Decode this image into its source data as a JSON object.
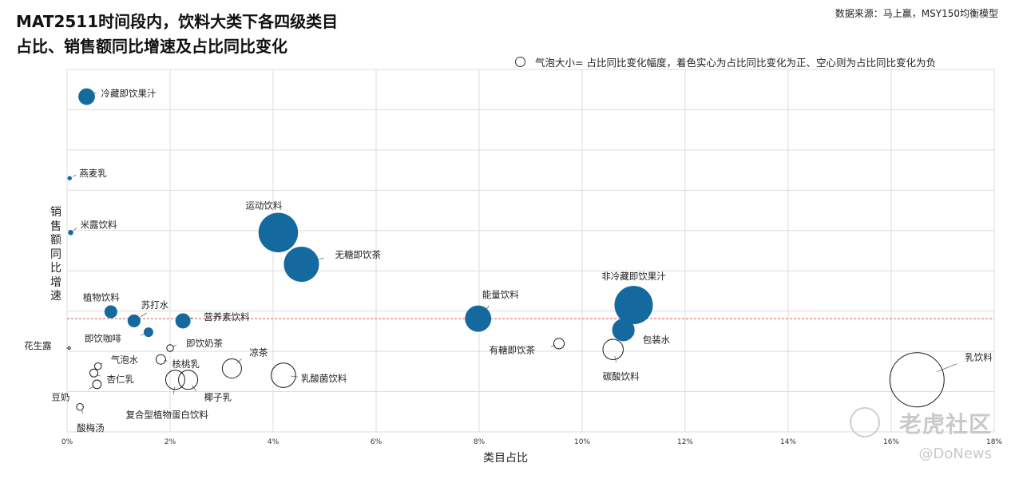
{
  "header": {
    "title_line1": "MAT2511时间段内，饮料大类下各四级类目",
    "title_line2": "占比、销售额同比增速及占比同比变化",
    "source": "数据来源：马上赢，MSY150均衡模型",
    "legend_text": "气泡大小=  占比同比变化幅度，着色实心为占比同比变化为正、空心则为占比同比变化为负"
  },
  "watermark": {
    "brand": "老虎社区",
    "handle": "@DoNews"
  },
  "chart_data": {
    "type": "scatter",
    "xlabel": "类目占比",
    "ylabel": "销售额同比增速",
    "xlim": [
      0,
      18
    ],
    "x_ticks": [
      "0%",
      "2%",
      "4%",
      "6%",
      "8%",
      "10%",
      "12%",
      "14%",
      "16%",
      "18%"
    ],
    "y_ticks_shown": false,
    "grid": true,
    "reference_line": {
      "axis": "y",
      "value": 0,
      "style": "dashed",
      "color": "#e05555"
    },
    "colors": {
      "positive": "#146a9e",
      "negative_outline": "#1a1a1a",
      "grid": "#dcdcdc"
    },
    "points": [
      {
        "name": "冷藏即饮果汁",
        "x": 0.38,
        "y": 0.49,
        "size": 0.3,
        "positive": true
      },
      {
        "name": "燕麦乳",
        "x": 0.05,
        "y": 0.31,
        "size": 0.02,
        "positive": true
      },
      {
        "name": "米露饮料",
        "x": 0.07,
        "y": 0.19,
        "size": 0.03,
        "positive": true
      },
      {
        "name": "运动饮料",
        "x": 4.1,
        "y": 0.19,
        "size": 1.7,
        "positive": true
      },
      {
        "name": "无糖即饮茶",
        "x": 4.55,
        "y": 0.12,
        "size": 1.35,
        "positive": true
      },
      {
        "name": "植物饮料",
        "x": 0.85,
        "y": 0.015,
        "size": 0.18,
        "positive": true
      },
      {
        "name": "苏打水",
        "x": 1.3,
        "y": -0.005,
        "size": 0.18,
        "positive": true
      },
      {
        "name": "营养素饮料",
        "x": 2.25,
        "y": -0.005,
        "size": 0.25,
        "positive": true
      },
      {
        "name": "即饮咖啡",
        "x": 1.58,
        "y": -0.03,
        "size": 0.1,
        "positive": true
      },
      {
        "name": "能量饮料",
        "x": 7.98,
        "y": 0.0,
        "size": 0.75,
        "positive": true
      },
      {
        "name": "非冷藏即饮果汁",
        "x": 11.0,
        "y": 0.03,
        "size": 1.6,
        "positive": true
      },
      {
        "name": "包装水",
        "x": 10.8,
        "y": -0.025,
        "size": 0.55,
        "positive": true
      },
      {
        "name": "花生露",
        "x": 0.04,
        "y": -0.065,
        "size": 0.005,
        "positive": false
      },
      {
        "name": "即饮奶茶",
        "x": 2.0,
        "y": -0.065,
        "size": 0.05,
        "positive": false
      },
      {
        "name": "气泡水",
        "x": 0.6,
        "y": -0.105,
        "size": 0.05,
        "positive": false
      },
      {
        "name": "核桃乳",
        "x": 1.82,
        "y": -0.09,
        "size": 0.1,
        "positive": false
      },
      {
        "name": "凉茶",
        "x": 3.2,
        "y": -0.11,
        "size": 0.4,
        "positive": false
      },
      {
        "name": "乳酸菌饮料",
        "x": 4.2,
        "y": -0.125,
        "size": 0.65,
        "positive": false
      },
      {
        "name": "杏仁乳",
        "x": 0.52,
        "y": -0.12,
        "size": 0.07,
        "positive": false
      },
      {
        "name": "豆奶",
        "x": 0.58,
        "y": -0.145,
        "size": 0.08,
        "positive": false
      },
      {
        "name": "椰子乳",
        "x": 2.35,
        "y": -0.135,
        "size": 0.4,
        "positive": false
      },
      {
        "name": "复合型植物蛋白饮料",
        "x": 2.1,
        "y": -0.135,
        "size": 0.4,
        "positive": false
      },
      {
        "name": "酸梅汤",
        "x": 0.25,
        "y": -0.195,
        "size": 0.05,
        "positive": false
      },
      {
        "name": "有糖即饮茶",
        "x": 9.55,
        "y": -0.055,
        "size": 0.12,
        "positive": false
      },
      {
        "name": "碳酸饮料",
        "x": 10.6,
        "y": -0.068,
        "size": 0.45,
        "positive": false
      },
      {
        "name": "乳饮料",
        "x": 16.5,
        "y": -0.135,
        "size": 3.2,
        "positive": false
      }
    ]
  }
}
